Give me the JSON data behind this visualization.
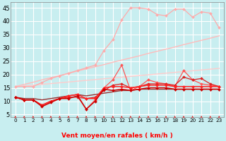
{
  "bg_color": "#c8eef0",
  "grid_color": "#ffffff",
  "xlabel": "Vent moyen/en rafales ( km/h )",
  "x": [
    0,
    1,
    2,
    3,
    4,
    5,
    6,
    7,
    8,
    9,
    10,
    11,
    12,
    13,
    14,
    15,
    16,
    17,
    18,
    19,
    20,
    21,
    22,
    23
  ],
  "ylim": [
    4,
    47
  ],
  "xlim": [
    -0.5,
    23.5
  ],
  "yticks": [
    5,
    10,
    15,
    20,
    25,
    30,
    35,
    40,
    45
  ],
  "series": [
    {
      "color": "#ffaaaa",
      "linewidth": 0.9,
      "marker": "D",
      "markersize": 2.0,
      "zorder": 3,
      "data": [
        15.5,
        15.5,
        15.5,
        17.0,
        18.5,
        19.5,
        20.5,
        21.5,
        22.5,
        23.5,
        29.0,
        33.0,
        40.5,
        45.0,
        45.0,
        44.5,
        42.5,
        42.0,
        44.5,
        44.5,
        41.5,
        43.5,
        43.0,
        37.5
      ]
    },
    {
      "color": "#ffbbbb",
      "linewidth": 1.0,
      "marker": null,
      "markersize": 0,
      "zorder": 2,
      "data": [
        15.5,
        16.3,
        17.1,
        18.0,
        18.8,
        19.6,
        20.4,
        21.3,
        22.1,
        22.9,
        23.7,
        24.6,
        25.4,
        26.2,
        27.0,
        27.9,
        28.7,
        29.5,
        30.3,
        31.2,
        32.0,
        32.8,
        33.6,
        34.5
      ]
    },
    {
      "color": "#ffcccc",
      "linewidth": 1.0,
      "marker": null,
      "markersize": 0,
      "zorder": 2,
      "data": [
        15.5,
        15.7,
        16.0,
        16.3,
        16.6,
        16.9,
        17.2,
        17.5,
        17.8,
        18.1,
        18.4,
        18.7,
        19.0,
        19.3,
        19.6,
        19.9,
        20.2,
        20.5,
        20.8,
        21.1,
        21.4,
        21.7,
        22.0,
        22.3
      ]
    },
    {
      "color": "#ff5555",
      "linewidth": 0.9,
      "marker": "D",
      "markersize": 2.0,
      "zorder": 4,
      "data": [
        11.5,
        10.5,
        10.5,
        8.5,
        10.0,
        11.0,
        12.0,
        12.5,
        7.0,
        10.5,
        15.0,
        18.0,
        23.5,
        14.0,
        15.5,
        18.0,
        17.0,
        16.5,
        15.5,
        21.5,
        18.0,
        16.5,
        16.0,
        15.5
      ]
    },
    {
      "color": "#dd2222",
      "linewidth": 0.9,
      "marker": "D",
      "markersize": 2.0,
      "zorder": 4,
      "data": [
        11.5,
        10.5,
        10.5,
        8.5,
        10.0,
        11.0,
        11.5,
        11.5,
        11.0,
        11.5,
        14.0,
        16.0,
        16.5,
        15.0,
        15.5,
        16.5,
        16.5,
        16.5,
        16.0,
        19.0,
        18.0,
        18.5,
        16.5,
        15.5
      ]
    },
    {
      "color": "#ff2222",
      "linewidth": 1.1,
      "marker": "D",
      "markersize": 2.0,
      "zorder": 4,
      "data": [
        11.5,
        10.5,
        10.5,
        8.5,
        10.0,
        11.0,
        12.0,
        12.5,
        11.0,
        11.0,
        15.0,
        15.5,
        15.5,
        15.0,
        15.5,
        16.0,
        16.0,
        16.0,
        15.5,
        15.5,
        15.5,
        15.5,
        15.5,
        15.5
      ]
    },
    {
      "color": "#cc0000",
      "linewidth": 1.1,
      "marker": "D",
      "markersize": 2.0,
      "zorder": 4,
      "data": [
        11.5,
        10.5,
        10.5,
        8.0,
        9.5,
        11.0,
        11.0,
        12.0,
        7.0,
        10.0,
        14.5,
        14.0,
        14.5,
        14.0,
        14.5,
        15.0,
        15.0,
        15.0,
        14.5,
        14.5,
        14.5,
        14.5,
        14.5,
        14.5
      ]
    },
    {
      "color": "#993333",
      "linewidth": 1.0,
      "marker": null,
      "markersize": 0,
      "zorder": 2,
      "data": [
        11.5,
        11.0,
        11.0,
        10.5,
        11.0,
        11.5,
        12.0,
        12.5,
        12.0,
        12.5,
        13.0,
        13.5,
        14.0,
        14.0,
        14.5,
        14.5,
        14.5,
        14.5,
        14.5,
        14.5,
        14.5,
        14.5,
        14.5,
        14.5
      ]
    }
  ],
  "wind_arrows": {
    "angles_deg": [
      45,
      50,
      80,
      55,
      50,
      50,
      80,
      85,
      85,
      50,
      50,
      50,
      50,
      50,
      50,
      50,
      50,
      50,
      50,
      50,
      50,
      50,
      50,
      50
    ],
    "color": "#cc2222",
    "size": 4.0
  },
  "xtick_fontsize": 5.2,
  "ytick_fontsize": 6.0,
  "xlabel_fontsize": 6.5
}
